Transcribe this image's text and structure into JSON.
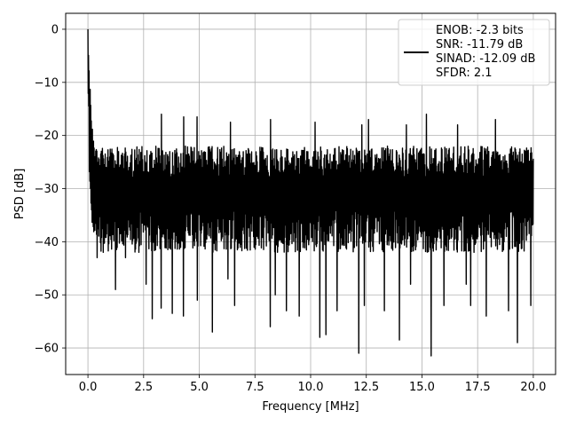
{
  "chart_data": {
    "type": "line",
    "title": "",
    "xlabel": "Frequency [MHz]",
    "ylabel": "PSD [dB]",
    "xlim": [
      -1.0,
      21.0
    ],
    "ylim": [
      -65,
      3
    ],
    "x_ticks": [
      0.0,
      2.5,
      5.0,
      7.5,
      10.0,
      12.5,
      15.0,
      17.5,
      20.0
    ],
    "x_tick_labels": [
      "0.0",
      "2.5",
      "5.0",
      "7.5",
      "10.0",
      "12.5",
      "15.0",
      "17.5",
      "20.0"
    ],
    "y_ticks": [
      0,
      -10,
      -20,
      -30,
      -40,
      -50,
      -60
    ],
    "y_tick_labels": [
      "0",
      "−10",
      "−20",
      "−30",
      "−40",
      "−50",
      "−60"
    ],
    "grid": true,
    "legend_position": "top-right",
    "legend_lines": [
      "ENOB: -2.3 bits",
      "SNR: -11.79 dB",
      "SINAD: -12.09 dB",
      "SFDR: 2.1"
    ],
    "series": [
      {
        "color": "#000000",
        "x_range": [
          0.0,
          20.0
        ],
        "peak": {
          "x": 0.0,
          "y": 0.0
        },
        "noise_floor_mean": -30,
        "noise_top_typical": -22,
        "noise_bottom_typical": -40,
        "dips": [
          {
            "x": 0.4,
            "y": -43
          },
          {
            "x": 0.7,
            "y": -42
          },
          {
            "x": 1.25,
            "y": -49
          },
          {
            "x": 1.7,
            "y": -43
          },
          {
            "x": 2.3,
            "y": -42
          },
          {
            "x": 2.6,
            "y": -48
          },
          {
            "x": 2.9,
            "y": -54.5
          },
          {
            "x": 3.3,
            "y": -52.5
          },
          {
            "x": 3.8,
            "y": -53.5
          },
          {
            "x": 4.3,
            "y": -54
          },
          {
            "x": 4.9,
            "y": -51
          },
          {
            "x": 5.6,
            "y": -53.5
          },
          {
            "x": 5.6,
            "y": -57
          },
          {
            "x": 6.6,
            "y": -52
          },
          {
            "x": 6.3,
            "y": -47
          },
          {
            "x": 8.2,
            "y": -56
          },
          {
            "x": 8.4,
            "y": -50
          },
          {
            "x": 8.9,
            "y": -53
          },
          {
            "x": 9.5,
            "y": -54
          },
          {
            "x": 10.4,
            "y": -58
          },
          {
            "x": 10.7,
            "y": -57.5
          },
          {
            "x": 11.2,
            "y": -53
          },
          {
            "x": 12.15,
            "y": -61
          },
          {
            "x": 12.4,
            "y": -52
          },
          {
            "x": 13.3,
            "y": -53
          },
          {
            "x": 14.0,
            "y": -58.5
          },
          {
            "x": 14.5,
            "y": -48
          },
          {
            "x": 15.4,
            "y": -61.5
          },
          {
            "x": 16.0,
            "y": -52
          },
          {
            "x": 17.0,
            "y": -48
          },
          {
            "x": 17.2,
            "y": -52
          },
          {
            "x": 17.9,
            "y": -54
          },
          {
            "x": 18.9,
            "y": -53
          },
          {
            "x": 19.3,
            "y": -59
          },
          {
            "x": 19.9,
            "y": -52
          }
        ],
        "spikes": [
          {
            "x": 3.3,
            "y": -16
          },
          {
            "x": 4.3,
            "y": -16.5
          },
          {
            "x": 4.9,
            "y": -16.5
          },
          {
            "x": 6.4,
            "y": -17.5
          },
          {
            "x": 8.2,
            "y": -17
          },
          {
            "x": 10.2,
            "y": -17.5
          },
          {
            "x": 12.3,
            "y": -18
          },
          {
            "x": 12.6,
            "y": -17
          },
          {
            "x": 14.3,
            "y": -18
          },
          {
            "x": 15.2,
            "y": -16
          },
          {
            "x": 16.6,
            "y": -18
          },
          {
            "x": 18.3,
            "y": -17
          }
        ]
      }
    ]
  }
}
